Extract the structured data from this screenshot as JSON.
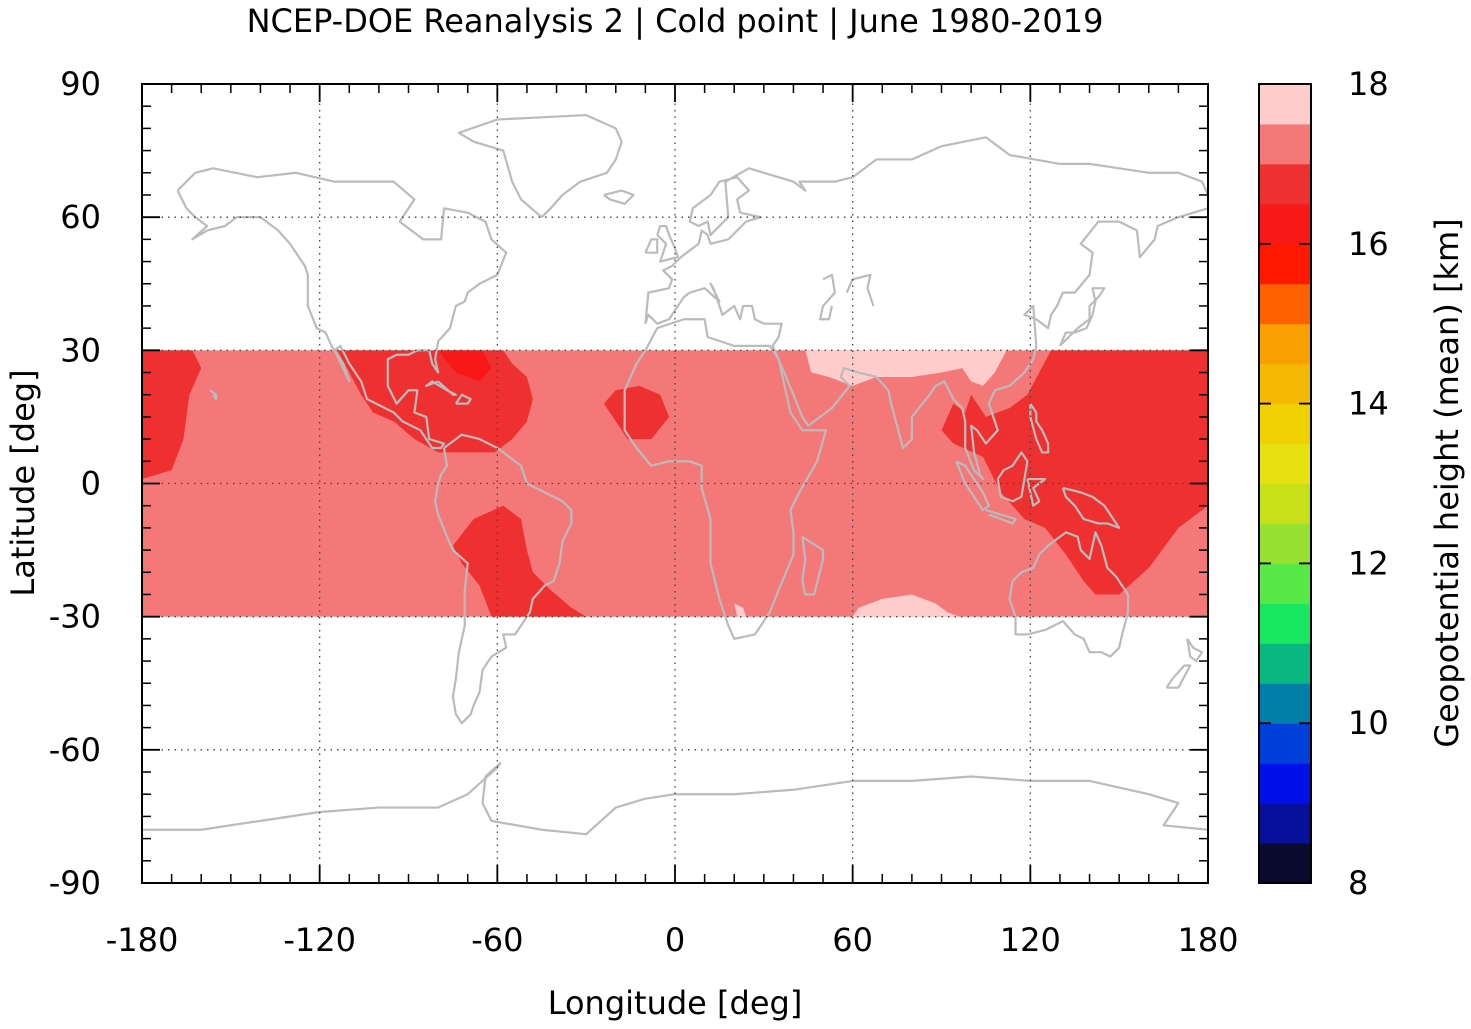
{
  "chart_data": {
    "type": "heatmap",
    "title": "NCEP-DOE Reanalysis 2 | Cold point | June 1980-2019",
    "xlabel": "Longitude [deg]",
    "ylabel": "Latitude [deg]",
    "xlim": [
      -180,
      180
    ],
    "ylim": [
      -90,
      90
    ],
    "x_ticks": [
      -180,
      -120,
      -60,
      0,
      60,
      120,
      180
    ],
    "x_tick_labels": [
      "-180",
      "-120",
      "-60",
      "0",
      "60",
      "120",
      "180"
    ],
    "y_ticks": [
      -90,
      -60,
      -30,
      0,
      30,
      60,
      90
    ],
    "y_tick_labels": [
      "-90",
      "-60",
      "-30",
      "0",
      "30",
      "60",
      "90"
    ],
    "grid": true,
    "data_lat_range": [
      -30,
      30
    ],
    "colorbar": {
      "label": "Geopotential height (mean) [km]",
      "range": [
        8,
        18
      ],
      "ticks": [
        8,
        10,
        12,
        14,
        16,
        18
      ],
      "tick_labels": [
        "8",
        "10",
        "12",
        "14",
        "16",
        "18"
      ],
      "colors": [
        "#0a0a2e",
        "#06109a",
        "#0010e8",
        "#0040d8",
        "#0080a8",
        "#08b880",
        "#18e860",
        "#58e848",
        "#98e030",
        "#c8e018",
        "#e8e010",
        "#f0d000",
        "#f5b800",
        "#f8a000",
        "#ff6000",
        "#ff1800",
        "#f81818",
        "#ee3030",
        "#f47878",
        "#ffcccc"
      ]
    },
    "field_levels": {
      "16.25-16.75": "#f81818",
      "16.75-17.25": "#ee3030",
      "17.25-17.75": "#f47878",
      "17.75-18.25": "#ffcccc"
    },
    "coastline_color": "#bbbbbb"
  }
}
